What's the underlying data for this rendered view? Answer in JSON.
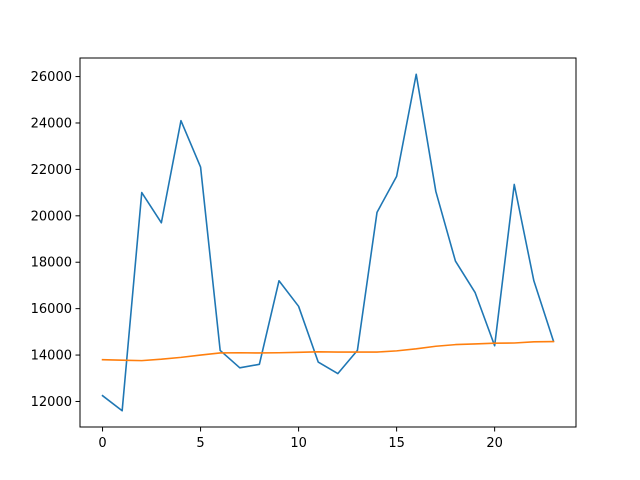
{
  "chart_data": {
    "type": "line",
    "title": "",
    "xlabel": "",
    "ylabel": "",
    "xlim": [
      -1.15,
      24.15
    ],
    "ylim": [
      10900,
      26800
    ],
    "grid": false,
    "x_ticks": [
      0,
      5,
      10,
      15,
      20
    ],
    "y_ticks": [
      12000,
      14000,
      16000,
      18000,
      20000,
      22000,
      24000,
      26000
    ],
    "x": [
      0,
      1,
      2,
      3,
      4,
      5,
      6,
      7,
      8,
      9,
      10,
      11,
      12,
      13,
      14,
      15,
      16,
      17,
      18,
      19,
      20,
      21,
      22,
      23
    ],
    "series": [
      {
        "color": "#1f77b4",
        "values": [
          12250,
          11600,
          21000,
          19700,
          24100,
          22100,
          14200,
          13450,
          13600,
          17200,
          16100,
          13700,
          13200,
          14200,
          20150,
          21700,
          26100,
          21050,
          18050,
          16700,
          14400,
          21350,
          17200,
          14600
        ]
      },
      {
        "color": "#ff7f0e",
        "values": [
          13800,
          13780,
          13760,
          13820,
          13900,
          14000,
          14090,
          14100,
          14090,
          14100,
          14120,
          14140,
          14130,
          14130,
          14130,
          14180,
          14270,
          14380,
          14450,
          14480,
          14510,
          14520,
          14570,
          14580
        ]
      }
    ]
  }
}
